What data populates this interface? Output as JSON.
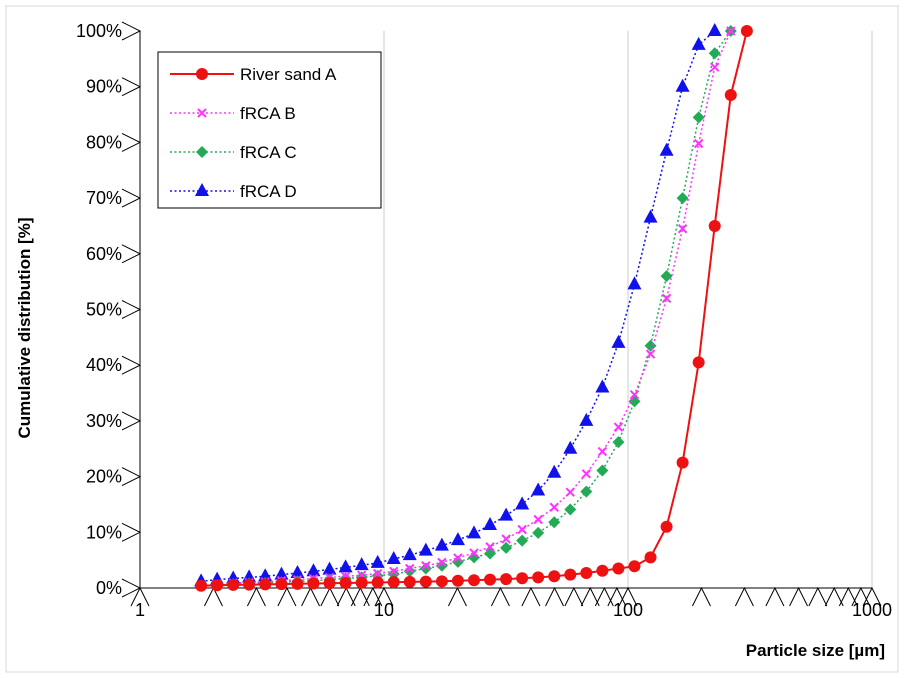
{
  "chart_data": {
    "type": "line",
    "title": "",
    "xlabel": "Particle size [µm]",
    "ylabel": "Cumulative distribution [%]",
    "x_scale": "log",
    "xlim": [
      1,
      1000
    ],
    "ylim": [
      0,
      100
    ],
    "x_ticks": [
      "1",
      "10",
      "100",
      "1000"
    ],
    "y_ticks": [
      "0%",
      "10%",
      "20%",
      "30%",
      "40%",
      "50%",
      "60%",
      "70%",
      "80%",
      "90%",
      "100%"
    ],
    "grid": "vertical major",
    "legend_position": "top-left",
    "x": [
      1.78,
      2.07,
      2.41,
      2.8,
      3.26,
      3.8,
      4.42,
      5.14,
      5.98,
      6.96,
      8.1,
      9.42,
      10.96,
      12.75,
      14.84,
      17.27,
      20.09,
      23.38,
      27.2,
      31.65,
      36.82,
      42.84,
      49.85,
      58.0,
      67.48,
      78.52,
      91.36,
      106.3,
      123.7,
      143.9,
      167.4,
      194.8,
      226.7,
      263.8,
      307.0,
      357.0
    ],
    "series": [
      {
        "name": "River sand A",
        "color": "#ee1111",
        "marker": "circle",
        "line": "solid",
        "values": [
          0.4,
          0.5,
          0.55,
          0.6,
          0.65,
          0.7,
          0.75,
          0.8,
          0.85,
          0.9,
          0.95,
          1.0,
          1.05,
          1.1,
          1.15,
          1.2,
          1.3,
          1.4,
          1.5,
          1.6,
          1.75,
          1.9,
          2.1,
          2.4,
          2.7,
          3.1,
          3.5,
          3.9,
          5.5,
          11.0,
          22.5,
          40.5,
          65.0,
          88.5,
          100,
          null
        ]
      },
      {
        "name": "fRCA B",
        "color": "#ff33ff",
        "marker": "x",
        "line": "dotted",
        "values": [
          null,
          0.7,
          0.9,
          1.0,
          1.1,
          1.3,
          1.5,
          1.7,
          1.9,
          2.1,
          2.3,
          2.6,
          3.0,
          3.5,
          4.0,
          4.6,
          5.4,
          6.3,
          7.4,
          8.8,
          10.5,
          12.3,
          14.5,
          17.2,
          20.5,
          24.5,
          28.9,
          34.7,
          42.0,
          52.0,
          64.5,
          79.8,
          93.5,
          100,
          null,
          null
        ]
      },
      {
        "name": "fRCA C",
        "color": "#22aa55",
        "marker": "diamond",
        "line": "dotted",
        "values": [
          null,
          0.5,
          0.7,
          0.8,
          0.9,
          1.0,
          1.2,
          1.3,
          1.5,
          1.7,
          1.9,
          2.2,
          2.5,
          3.0,
          3.5,
          4.0,
          4.7,
          5.5,
          6.2,
          7.2,
          8.5,
          9.9,
          11.8,
          14.1,
          17.3,
          21.1,
          26.2,
          33.5,
          43.5,
          56.0,
          70.0,
          84.5,
          96.0,
          100,
          null,
          null
        ]
      },
      {
        "name": "fRCA D",
        "color": "#1111ee",
        "marker": "triangle",
        "line": "dotted",
        "values": [
          1.2,
          1.5,
          1.7,
          1.9,
          2.1,
          2.4,
          2.7,
          3.0,
          3.3,
          3.7,
          4.1,
          4.5,
          5.2,
          5.9,
          6.7,
          7.6,
          8.6,
          9.8,
          11.3,
          13.0,
          15.0,
          17.5,
          20.7,
          25.0,
          30.0,
          36.0,
          44.0,
          54.5,
          66.5,
          78.5,
          90.0,
          97.5,
          100,
          null,
          null,
          null
        ]
      }
    ]
  }
}
